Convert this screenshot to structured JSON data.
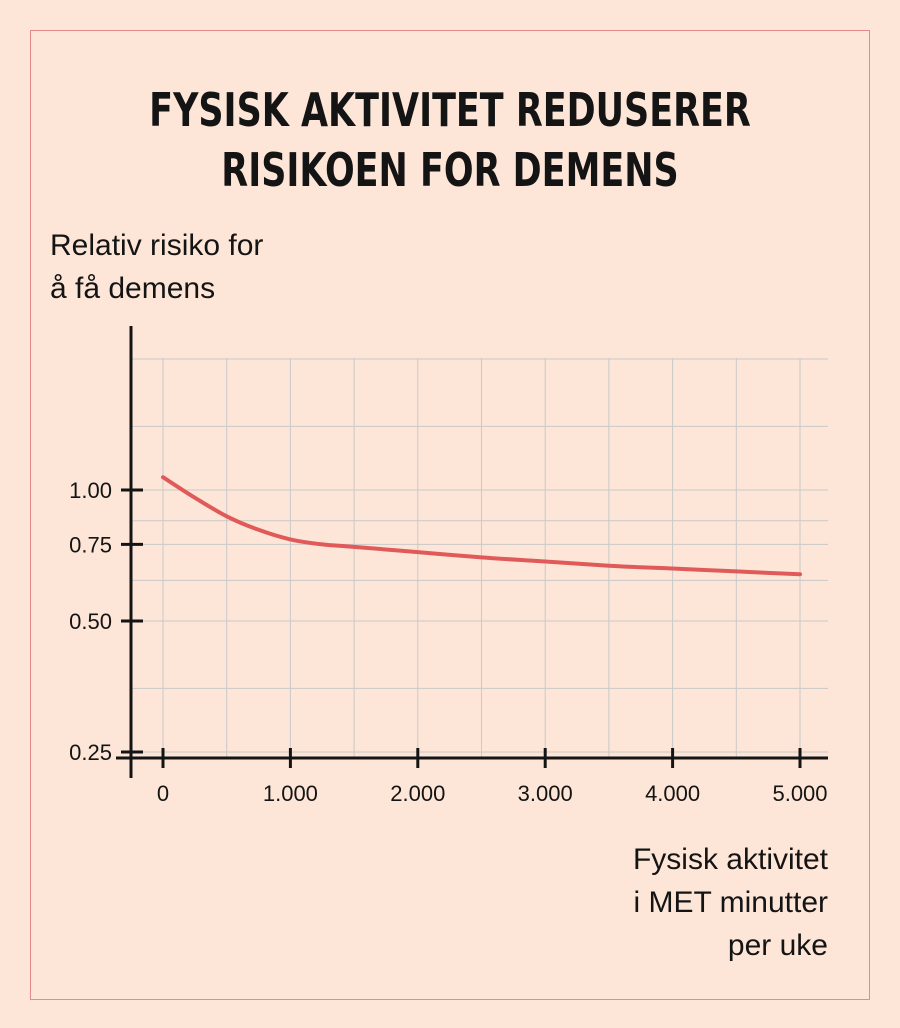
{
  "title_lines": [
    "FYSISK AKTIVITET REDUSERER",
    "RISIKOEN FOR DEMENS"
  ],
  "ylabel_lines": [
    "Relativ risiko for",
    "å få demens"
  ],
  "xlabel_lines": [
    "Fysisk aktivitet",
    "i MET minutter",
    "per uke"
  ],
  "colors": {
    "background": "#fde6d8",
    "frame": "#e58a8a",
    "line": "#e05a5a",
    "grid": "#c9c9c9",
    "axis": "#141414"
  },
  "chart_data": {
    "type": "line",
    "title": "FYSISK AKTIVITET REDUSERER RISIKOEN FOR DEMENS",
    "xlabel": "Fysisk aktivitet i MET minutter per uke",
    "ylabel": "Relativ risiko for å få demens",
    "y_scale": "log",
    "xlim": [
      0,
      5000
    ],
    "ylim": [
      0.25,
      2.0
    ],
    "xticks": [
      0,
      1000,
      2000,
      3000,
      4000,
      5000
    ],
    "xtick_labels": [
      "0",
      "1.000",
      "2.000",
      "3.000",
      "4.000",
      "5.000"
    ],
    "yticks": [
      0.25,
      0.5,
      0.75,
      1.0
    ],
    "ytick_labels": [
      "0.25",
      "0.50",
      "0.75",
      "1.00"
    ],
    "grid": true,
    "x": [
      0,
      250,
      500,
      750,
      1000,
      1250,
      1500,
      2000,
      2500,
      3000,
      3500,
      4000,
      4500,
      5000
    ],
    "y": [
      1.07,
      0.96,
      0.87,
      0.81,
      0.77,
      0.75,
      0.74,
      0.72,
      0.7,
      0.685,
      0.67,
      0.66,
      0.65,
      0.64
    ]
  }
}
